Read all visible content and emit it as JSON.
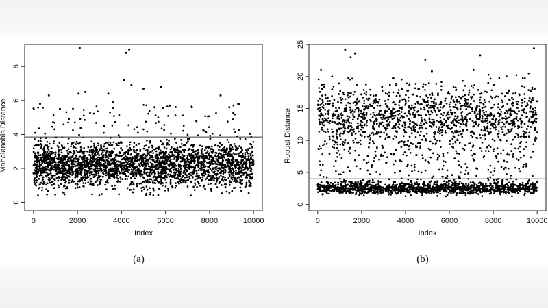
{
  "chart_data": [
    {
      "type": "scatter",
      "caption": "(a)",
      "xlabel": "Index",
      "ylabel": "Mahalanobis Distance",
      "xlim": [
        -400,
        10400
      ],
      "ylim": [
        -0.5,
        9.3
      ],
      "xticks": [
        0,
        2000,
        4000,
        6000,
        8000,
        10000
      ],
      "yticks": [
        0,
        2,
        4,
        6,
        8
      ],
      "hline": 3.85,
      "n_points": 10000,
      "series": [
        {
          "description_only": "",
          "points": {
            "bulk_range": [
              0.5,
              3.8
            ],
            "bulk_center": 2.2
          }
        }
      ],
      "outliers": [
        [
          2100,
          9.1
        ],
        [
          4200,
          8.8
        ],
        [
          4350,
          9.0
        ],
        [
          4100,
          7.2
        ],
        [
          700,
          6.3
        ],
        [
          2050,
          6.4
        ],
        [
          2350,
          6.5
        ],
        [
          4450,
          6.9
        ],
        [
          5000,
          6.7
        ],
        [
          5800,
          6.8
        ],
        [
          3400,
          6.4
        ],
        [
          8500,
          6.3
        ],
        [
          9300,
          5.8
        ],
        [
          300,
          5.8
        ],
        [
          6200,
          5.7
        ],
        [
          3600,
          5.9
        ],
        [
          5500,
          5.6
        ],
        [
          7200,
          5.6
        ],
        [
          8900,
          5.6
        ],
        [
          1200,
          5.5
        ]
      ],
      "grid": false
    },
    {
      "type": "scatter",
      "caption": "(b)",
      "xlabel": "Index",
      "ylabel": "Robust Distance",
      "xlim": [
        -400,
        10400
      ],
      "ylim": [
        -1,
        25
      ],
      "xticks": [
        0,
        2000,
        4000,
        6000,
        8000,
        10000
      ],
      "yticks": [
        0,
        5,
        10,
        15,
        20,
        25
      ],
      "hline": 4.0,
      "n_points": 10000,
      "clusters": {
        "low": [
          1,
          4
        ],
        "high": [
          8,
          20
        ]
      },
      "outliers": [
        [
          1250,
          24.2
        ],
        [
          1700,
          23.6
        ],
        [
          1500,
          23.0
        ],
        [
          4900,
          22.6
        ],
        [
          7400,
          23.3
        ],
        [
          9850,
          24.4
        ],
        [
          150,
          21.0
        ],
        [
          7100,
          21.0
        ],
        [
          5200,
          20.8
        ]
      ],
      "grid": false
    }
  ]
}
